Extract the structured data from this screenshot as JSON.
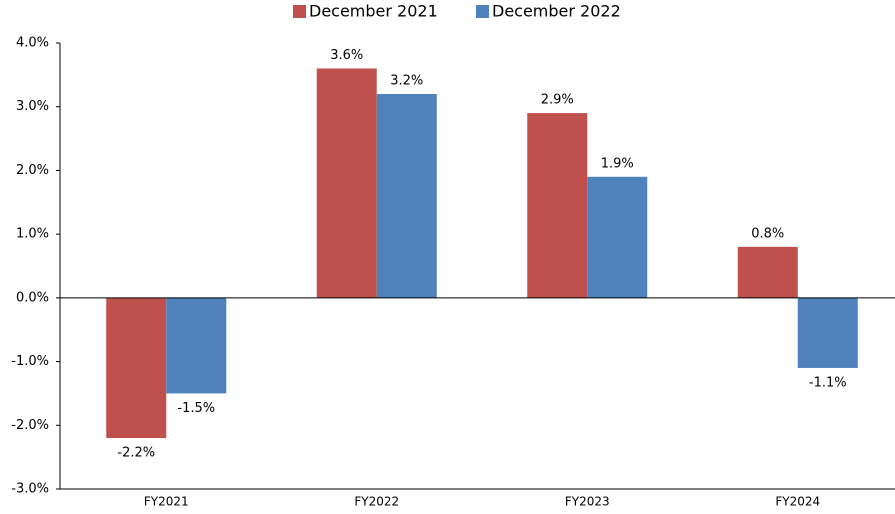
{
  "chart_data": {
    "type": "bar",
    "categories": [
      "FY2021",
      "FY2022",
      "FY2023",
      "FY2024"
    ],
    "series": [
      {
        "name": "December 2021",
        "color": "#c0504d",
        "values": [
          -2.2,
          3.6,
          2.9,
          0.8
        ],
        "value_labels": [
          "-2.2%",
          "3.6%",
          "2.9%",
          "0.8%"
        ]
      },
      {
        "name": "December 2022",
        "color": "#4f81bd",
        "values": [
          -1.5,
          3.2,
          1.9,
          -1.1
        ],
        "value_labels": [
          "-1.5%",
          "3.2%",
          "1.9%",
          "-1.1%"
        ]
      }
    ],
    "ylim": [
      -3,
      4
    ],
    "yticks": [
      {
        "value": -3,
        "label": "-3.0%"
      },
      {
        "value": -2,
        "label": "-2.0%"
      },
      {
        "value": -1,
        "label": "-1.0%"
      },
      {
        "value": 0,
        "label": "0.0%"
      },
      {
        "value": 1,
        "label": "1.0%"
      },
      {
        "value": 2,
        "label": "2.0%"
      },
      {
        "value": 3,
        "label": "3.0%"
      },
      {
        "value": 4,
        "label": "4.0%"
      }
    ],
    "legend": "top"
  }
}
